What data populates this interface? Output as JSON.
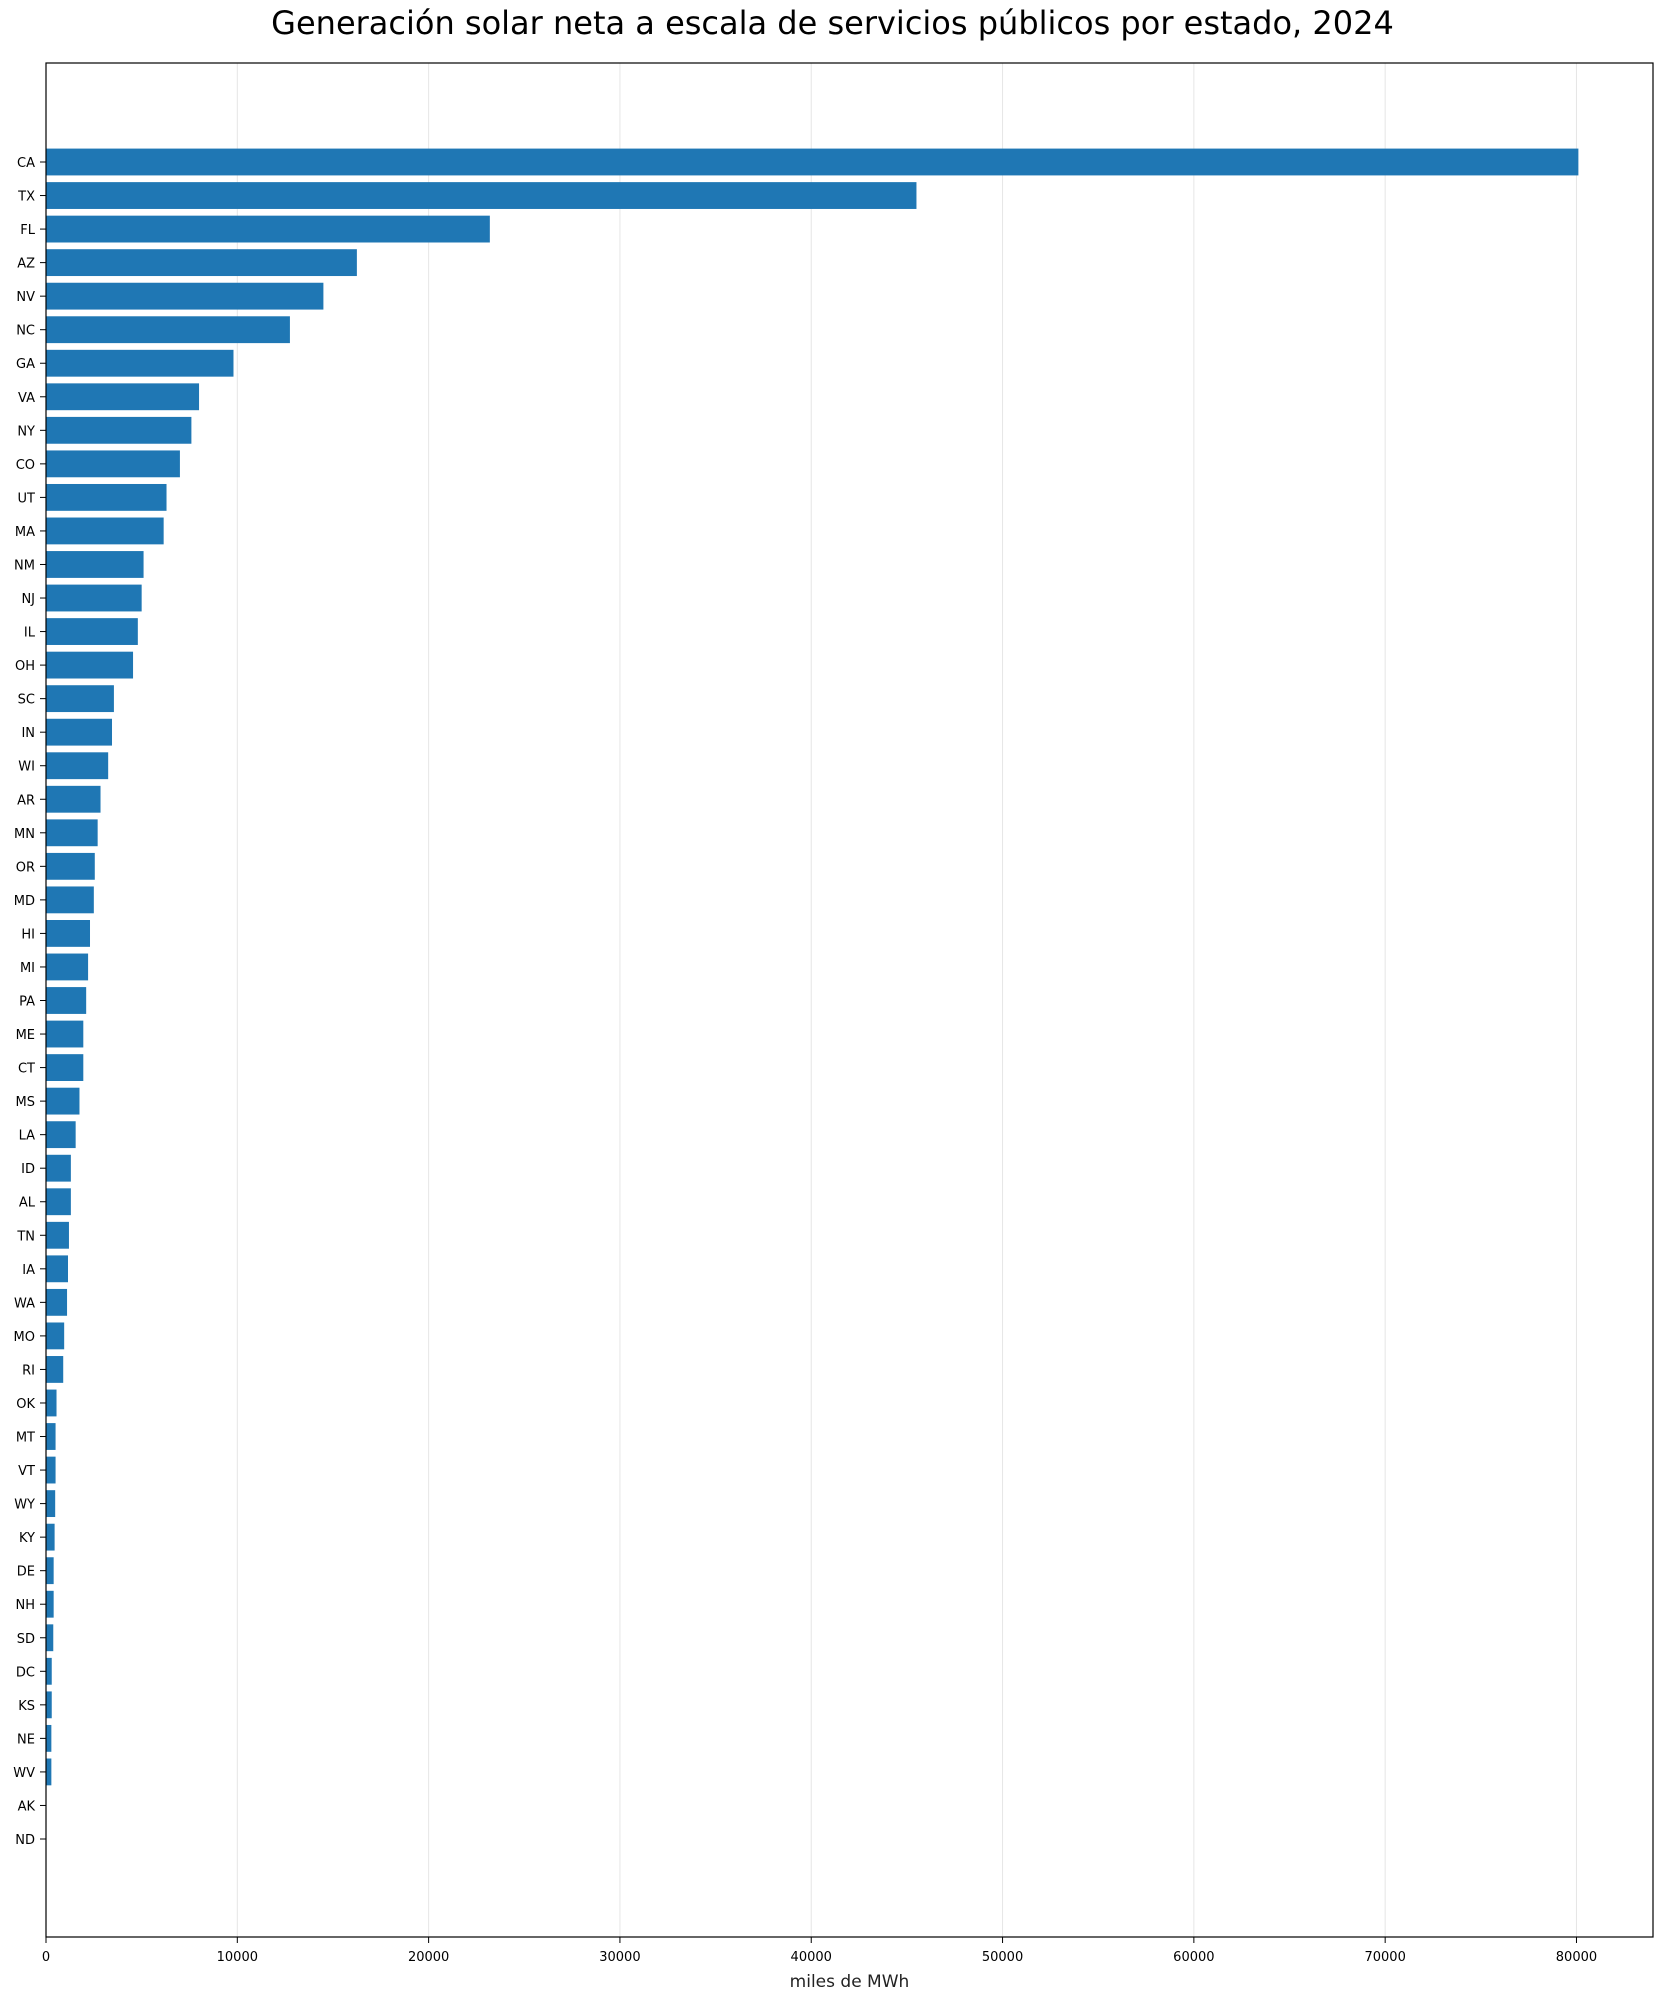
{
  "chart_data": {
    "type": "bar",
    "orientation": "horizontal",
    "title": "Generación solar neta a escala de servicios públicos por estado, 2024",
    "xlabel": "miles de MWh",
    "ylabel": "",
    "xlim": [
      0,
      84000
    ],
    "xticks": [
      0,
      10000,
      20000,
      30000,
      40000,
      50000,
      60000,
      70000,
      80000
    ],
    "grid": "vertical",
    "bar_color": "#1f77b4",
    "categories": [
      "CA",
      "TX",
      "FL",
      "AZ",
      "NV",
      "NC",
      "GA",
      "VA",
      "NY",
      "CO",
      "UT",
      "MA",
      "NM",
      "NJ",
      "IL",
      "OH",
      "SC",
      "IN",
      "WI",
      "AR",
      "MN",
      "OR",
      "MD",
      "HI",
      "MI",
      "PA",
      "ME",
      "CT",
      "MS",
      "LA",
      "ID",
      "AL",
      "TN",
      "IA",
      "WA",
      "MO",
      "RI",
      "OK",
      "MT",
      "VT",
      "WY",
      "KY",
      "DE",
      "NH",
      "SD",
      "DC",
      "KS",
      "NE",
      "WV",
      "AK",
      "ND"
    ],
    "values": [
      80100,
      45500,
      23200,
      16250,
      14500,
      12750,
      9800,
      8000,
      7600,
      7000,
      6300,
      6150,
      5100,
      5000,
      4800,
      4550,
      3550,
      3450,
      3250,
      2850,
      2700,
      2550,
      2500,
      2300,
      2200,
      2100,
      1950,
      1950,
      1750,
      1550,
      1300,
      1300,
      1200,
      1150,
      1100,
      950,
      900,
      550,
      500,
      500,
      480,
      450,
      400,
      400,
      380,
      300,
      300,
      280,
      280,
      0,
      0
    ]
  }
}
